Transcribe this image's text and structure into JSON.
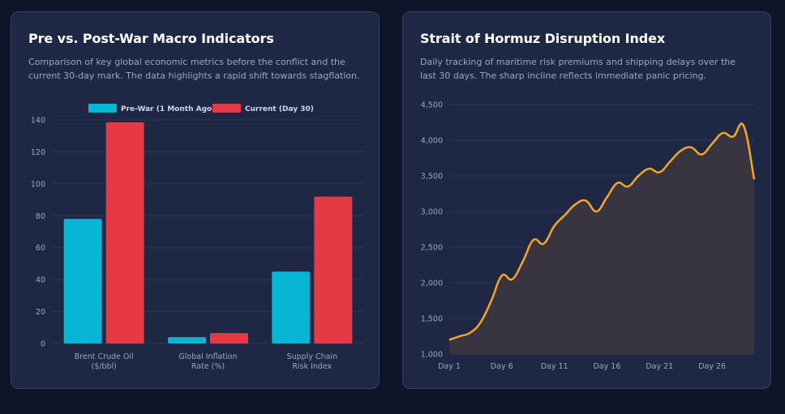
{
  "colors": {
    "background": "#0e1528",
    "card": "#1e2844",
    "prewar": "#06b6d4",
    "current": "#e63946",
    "line": "#f5a623",
    "area": "#3a3640"
  },
  "charts": [
    {
      "title": "Pre vs. Post-War Macro Indicators",
      "description": "Comparison of key global economic metrics before the conflict and the current 30-day mark. The data highlights a rapid shift towards stagflation."
    },
    {
      "title": "Strait of Hormuz Disruption Index",
      "description": "Daily tracking of maritime risk premiums and shipping delays over the last 30 days. The sharp incline reflects immediate panic pricing."
    }
  ],
  "chart_data": [
    {
      "type": "bar",
      "categories": [
        [
          "Brent Crude Oil",
          "($/bbl)"
        ],
        [
          "Global Inflation",
          "Rate (%)"
        ],
        [
          "Supply Chain",
          "Risk Index"
        ]
      ],
      "series": [
        {
          "name": "Pre-War (1 Month Ago)",
          "values": [
            78,
            4,
            45
          ]
        },
        {
          "name": "Current (Day 30)",
          "values": [
            138.5,
            6.5,
            92
          ]
        }
      ],
      "ylim": [
        0,
        140
      ],
      "yticks": [
        0,
        20,
        40,
        60,
        80,
        100,
        120,
        140
      ],
      "legend": "top-center",
      "grid": true
    },
    {
      "type": "area",
      "x": [
        "Day 1",
        "Day 2",
        "Day 3",
        "Day 4",
        "Day 5",
        "Day 6",
        "Day 7",
        "Day 8",
        "Day 9",
        "Day 10",
        "Day 11",
        "Day 12",
        "Day 13",
        "Day 14",
        "Day 15",
        "Day 16",
        "Day 17",
        "Day 18",
        "Day 19",
        "Day 20",
        "Day 21",
        "Day 22",
        "Day 23",
        "Day 24",
        "Day 25",
        "Day 26",
        "Day 27",
        "Day 28",
        "Day 29",
        "Day 30"
      ],
      "xticks": [
        "Day 1",
        "Day 6",
        "Day 11",
        "Day 16",
        "Day 21",
        "Day 26"
      ],
      "values": [
        1200,
        1250,
        1300,
        1450,
        1750,
        2100,
        2050,
        2300,
        2600,
        2550,
        2800,
        2950,
        3100,
        3150,
        3000,
        3200,
        3400,
        3350,
        3500,
        3600,
        3550,
        3700,
        3850,
        3900,
        3800,
        3950,
        4100,
        4050,
        4200,
        3450
      ],
      "ylim": [
        1000,
        4500
      ],
      "yticks": [
        1000,
        1500,
        2000,
        2500,
        3000,
        3500,
        4000,
        4500
      ],
      "ytick_labels": [
        "1,000",
        "1,500",
        "2,000",
        "2,500",
        "3,000",
        "3,500",
        "4,000",
        "4,500"
      ],
      "grid": true
    }
  ]
}
